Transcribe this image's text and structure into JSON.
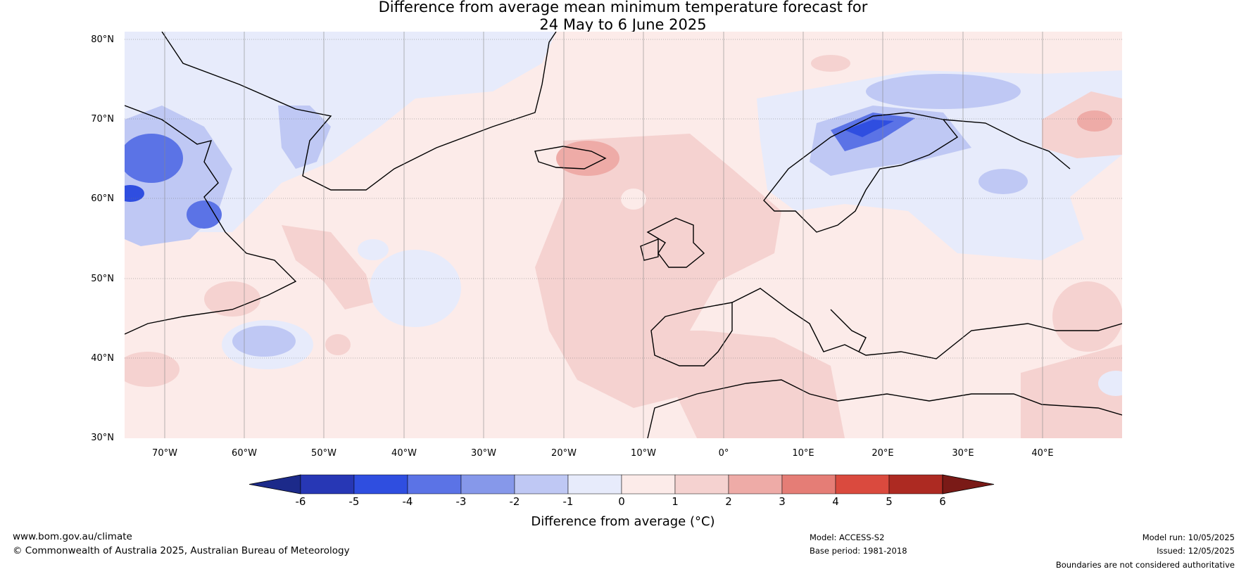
{
  "header": {
    "title_line1": "Difference from average mean minimum temperature forecast for",
    "title_line2": "24 May to 6 June 2025"
  },
  "map": {
    "lat_labels": [
      "80°N",
      "70°N",
      "60°N",
      "50°N",
      "40°N",
      "30°N"
    ],
    "lon_labels": [
      "70°W",
      "60°W",
      "50°W",
      "40°W",
      "30°W",
      "20°W",
      "10°W",
      "0°",
      "10°E",
      "20°E",
      "30°E",
      "40°E"
    ],
    "extent": {
      "lon": [
        -75,
        50
      ],
      "lat": [
        30,
        81
      ]
    },
    "background_category": "0 to 1",
    "anomaly_regions": [
      {
        "name": "Canadian Arctic / Baffin Bay",
        "category": "-1 to 0"
      },
      {
        "name": "Labrador / Hudson Strait",
        "category": "-3 to -4"
      },
      {
        "name": "West Atlantic off Nova Scotia",
        "category": "-2 to -1"
      },
      {
        "name": "Iceland",
        "category": "2 to 3"
      },
      {
        "name": "North-east Atlantic / British Isles",
        "category": "1 to 2"
      },
      {
        "name": "Norway / Scandinavian mountains",
        "category": "-3 to -4"
      },
      {
        "name": "Barents Sea",
        "category": "-2 to -1"
      },
      {
        "name": "Northern Russia",
        "category": "1 to 2"
      },
      {
        "name": "North Africa",
        "category": "1 to 2"
      }
    ]
  },
  "colorbar": {
    "colors": [
      "#1c2a8a",
      "#2737b5",
      "#2f4ee0",
      "#5b73e6",
      "#8698ea",
      "#bfc8f4",
      "#e7ebfb",
      "#fcebe9",
      "#f5d2d0",
      "#eeaba7",
      "#e57d76",
      "#da4a3e",
      "#ad2a22",
      "#7a1a17"
    ],
    "labels": [
      "-6",
      "-5",
      "-4",
      "-3",
      "-2",
      "-1",
      "0",
      "1",
      "2",
      "3",
      "4",
      "5",
      "6"
    ],
    "title": "Difference from average (°C)"
  },
  "footer": {
    "website": "www.bom.gov.au/climate",
    "copyright": "© Commonwealth of Australia 2025, Australian Bureau of Meteorology",
    "model": "Model: ACCESS-S2",
    "base_period": "Base period: 1981-2018",
    "model_run": "Model run: 10/05/2025",
    "issued": "Issued: 12/05/2025",
    "disclaimer": "Boundaries are not considered authoritative"
  }
}
